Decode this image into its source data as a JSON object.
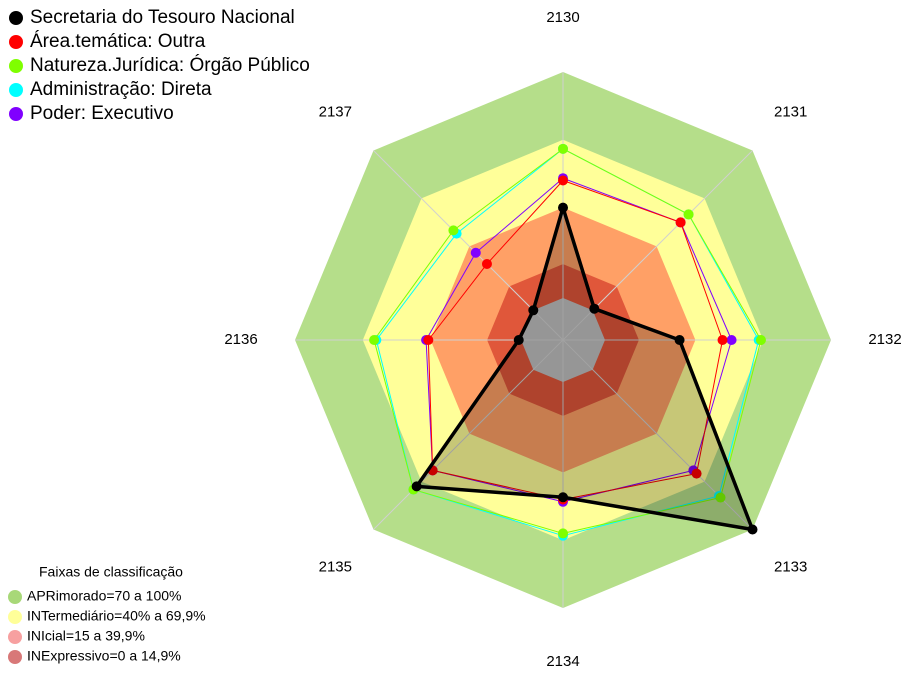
{
  "chart_data": {
    "type": "radar",
    "categories": [
      "2130",
      "2131",
      "2132",
      "2133",
      "2134",
      "2135",
      "2136",
      "2137"
    ],
    "rlim": [
      0,
      100
    ],
    "series": [
      {
        "name": "Secretaria do Tesouro Nacional",
        "color": "#000000",
        "filled": true,
        "values": [
          40,
          1,
          33,
          100,
          51,
          73,
          1,
          0
        ]
      },
      {
        "name": "Área.temática: Outra",
        "color": "#ff0000",
        "values": [
          52,
          55,
          52,
          65,
          52,
          63,
          41,
          29
        ]
      },
      {
        "name": "Natureza.Jurídica: Órgão Público",
        "color": "#7fff00",
        "values": [
          66,
          60,
          69,
          80,
          67,
          75,
          65,
          50
        ]
      },
      {
        "name": "Administração: Direta",
        "color": "#00ffff",
        "values": [
          66,
          60,
          68,
          79,
          68,
          75,
          64,
          48
        ]
      },
      {
        "name": "Poder: Executivo",
        "color": "#8000ff",
        "values": [
          53,
          55,
          56,
          63,
          53,
          63,
          42,
          36
        ]
      }
    ],
    "bands_title": "Faixas de classificação",
    "bands": [
      {
        "label": "APRimorado=70 a 100%",
        "range": [
          70,
          100
        ],
        "color": "#b5de8a",
        "legend_color": "#a8d878"
      },
      {
        "label": "INTermediário=40% a 69,9%",
        "range": [
          40,
          70
        ],
        "color": "#ffff99",
        "legend_color": "#ffff99"
      },
      {
        "label": "INIcial=15 a 39,9%",
        "range": [
          15,
          40
        ],
        "color": "#ffa066",
        "legend_color": "#f7a0a0"
      },
      {
        "label": "INExpressivo=0 a 14,9%",
        "range": [
          0,
          15
        ],
        "color": "#e0573a",
        "legend_color": "#d87878"
      }
    ]
  }
}
